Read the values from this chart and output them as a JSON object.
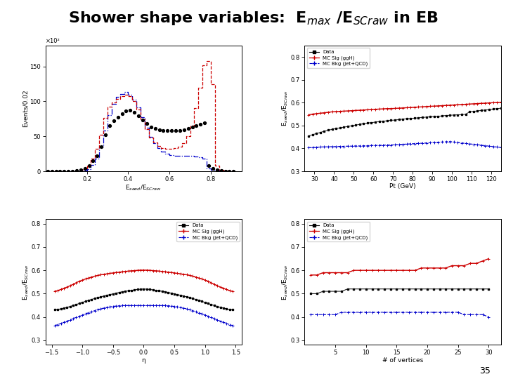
{
  "title": "Shower shape variables:  E$_{max}$ /E$_{SCraw}$ in EB",
  "title_fontsize": 16,
  "page_number": "35",
  "top_left": {
    "xlabel": "E$_{seed}$/E$_{SCraw}$",
    "ylabel": "Events/0.02",
    "ylabel_multiplier": "×10²",
    "xlim": [
      0,
      0.95
    ],
    "ylim": [
      0,
      180
    ],
    "yticks": [
      0,
      50,
      100,
      150
    ],
    "xticks": [
      0.2,
      0.4,
      0.6,
      0.8
    ],
    "data_x": [
      0.01,
      0.03,
      0.05,
      0.07,
      0.09,
      0.11,
      0.13,
      0.15,
      0.17,
      0.19,
      0.21,
      0.23,
      0.25,
      0.27,
      0.29,
      0.31,
      0.33,
      0.35,
      0.37,
      0.39,
      0.41,
      0.43,
      0.45,
      0.47,
      0.49,
      0.51,
      0.53,
      0.55,
      0.57,
      0.59,
      0.61,
      0.63,
      0.65,
      0.67,
      0.69,
      0.71,
      0.73,
      0.75,
      0.77,
      0.79,
      0.81,
      0.83,
      0.85,
      0.87,
      0.89,
      0.91
    ],
    "data_y": [
      0,
      0,
      0,
      0,
      0,
      0,
      0,
      1,
      2,
      4,
      8,
      15,
      22,
      35,
      52,
      65,
      72,
      77,
      82,
      86,
      87,
      84,
      79,
      73,
      68,
      63,
      61,
      59,
      58,
      58,
      58,
      58,
      58,
      59,
      61,
      63,
      65,
      67,
      69,
      8,
      4,
      2,
      1,
      0,
      0,
      0
    ],
    "mc_sig_x": [
      0.01,
      0.03,
      0.05,
      0.07,
      0.09,
      0.11,
      0.13,
      0.15,
      0.17,
      0.19,
      0.21,
      0.23,
      0.25,
      0.27,
      0.29,
      0.31,
      0.33,
      0.35,
      0.37,
      0.39,
      0.41,
      0.43,
      0.45,
      0.47,
      0.49,
      0.51,
      0.53,
      0.55,
      0.57,
      0.59,
      0.61,
      0.63,
      0.65,
      0.67,
      0.69,
      0.71,
      0.73,
      0.75,
      0.77,
      0.79,
      0.81,
      0.83,
      0.85,
      0.87,
      0.89,
      0.91
    ],
    "mc_sig_y": [
      0,
      0,
      0,
      0,
      0,
      0,
      0,
      0,
      1,
      3,
      8,
      18,
      32,
      52,
      76,
      92,
      98,
      103,
      107,
      110,
      107,
      100,
      88,
      74,
      60,
      48,
      41,
      36,
      33,
      32,
      32,
      33,
      35,
      40,
      50,
      65,
      90,
      120,
      152,
      158,
      125,
      8,
      2,
      1,
      0,
      0
    ],
    "mc_bkg_x": [
      0.01,
      0.03,
      0.05,
      0.07,
      0.09,
      0.11,
      0.13,
      0.15,
      0.17,
      0.19,
      0.21,
      0.23,
      0.25,
      0.27,
      0.29,
      0.31,
      0.33,
      0.35,
      0.37,
      0.39,
      0.41,
      0.43,
      0.45,
      0.47,
      0.49,
      0.51,
      0.53,
      0.55,
      0.57,
      0.59,
      0.61,
      0.63,
      0.65,
      0.67,
      0.69,
      0.71,
      0.73,
      0.75,
      0.77,
      0.79,
      0.81,
      0.83,
      0.85,
      0.87,
      0.89,
      0.91
    ],
    "mc_bkg_y": [
      0,
      0,
      0,
      0,
      0,
      0,
      0,
      0,
      0,
      1,
      3,
      9,
      18,
      35,
      58,
      80,
      96,
      106,
      111,
      114,
      110,
      102,
      91,
      77,
      62,
      49,
      40,
      33,
      28,
      25,
      23,
      22,
      22,
      22,
      22,
      22,
      21,
      20,
      18,
      4,
      2,
      1,
      0,
      0,
      0,
      0
    ]
  },
  "top_right": {
    "xlabel": "Pt (GeV)",
    "ylabel": "E$_{seed}$/E$_{SCraw}$",
    "xlim": [
      25,
      125
    ],
    "ylim": [
      0.3,
      0.85
    ],
    "yticks": [
      0.3,
      0.4,
      0.5,
      0.6,
      0.7,
      0.8
    ],
    "xticks": [
      30,
      40,
      50,
      60,
      70,
      80,
      90,
      100,
      110,
      120
    ],
    "data_x": [
      27,
      29,
      31,
      33,
      35,
      37,
      39,
      41,
      43,
      45,
      47,
      49,
      51,
      53,
      55,
      57,
      59,
      61,
      63,
      65,
      67,
      69,
      71,
      73,
      75,
      77,
      79,
      81,
      83,
      85,
      87,
      89,
      91,
      93,
      95,
      97,
      99,
      101,
      103,
      105,
      107,
      109,
      111,
      113,
      115,
      117,
      119,
      121,
      123,
      125
    ],
    "data_y": [
      0.455,
      0.46,
      0.465,
      0.47,
      0.475,
      0.48,
      0.483,
      0.487,
      0.49,
      0.493,
      0.496,
      0.499,
      0.502,
      0.505,
      0.508,
      0.511,
      0.513,
      0.515,
      0.517,
      0.519,
      0.521,
      0.523,
      0.524,
      0.526,
      0.528,
      0.53,
      0.531,
      0.532,
      0.534,
      0.535,
      0.537,
      0.538,
      0.54,
      0.541,
      0.542,
      0.544,
      0.545,
      0.546,
      0.547,
      0.548,
      0.549,
      0.56,
      0.562,
      0.564,
      0.566,
      0.568,
      0.57,
      0.572,
      0.574,
      0.576
    ],
    "mc_sig_x": [
      27,
      29,
      31,
      33,
      35,
      37,
      39,
      41,
      43,
      45,
      47,
      49,
      51,
      53,
      55,
      57,
      59,
      61,
      63,
      65,
      67,
      69,
      71,
      73,
      75,
      77,
      79,
      81,
      83,
      85,
      87,
      89,
      91,
      93,
      95,
      97,
      99,
      101,
      103,
      105,
      107,
      109,
      111,
      113,
      115,
      117,
      119,
      121,
      123,
      125
    ],
    "mc_sig_y": [
      0.547,
      0.55,
      0.552,
      0.554,
      0.556,
      0.558,
      0.56,
      0.561,
      0.562,
      0.563,
      0.564,
      0.565,
      0.566,
      0.567,
      0.568,
      0.569,
      0.57,
      0.571,
      0.572,
      0.573,
      0.574,
      0.574,
      0.575,
      0.576,
      0.577,
      0.578,
      0.579,
      0.58,
      0.581,
      0.582,
      0.583,
      0.584,
      0.585,
      0.586,
      0.587,
      0.588,
      0.589,
      0.59,
      0.591,
      0.592,
      0.593,
      0.594,
      0.595,
      0.596,
      0.597,
      0.598,
      0.599,
      0.6,
      0.601,
      0.602
    ],
    "mc_bkg_x": [
      27,
      29,
      31,
      33,
      35,
      37,
      39,
      41,
      43,
      45,
      47,
      49,
      51,
      53,
      55,
      57,
      59,
      61,
      63,
      65,
      67,
      69,
      71,
      73,
      75,
      77,
      79,
      81,
      83,
      85,
      87,
      89,
      91,
      93,
      95,
      97,
      99,
      101,
      103,
      105,
      107,
      109,
      111,
      113,
      115,
      117,
      119,
      121,
      123,
      125
    ],
    "mc_bkg_y": [
      0.403,
      0.404,
      0.405,
      0.406,
      0.407,
      0.407,
      0.408,
      0.408,
      0.409,
      0.409,
      0.41,
      0.41,
      0.411,
      0.411,
      0.412,
      0.412,
      0.413,
      0.413,
      0.414,
      0.414,
      0.415,
      0.415,
      0.416,
      0.417,
      0.418,
      0.419,
      0.42,
      0.421,
      0.422,
      0.423,
      0.424,
      0.425,
      0.426,
      0.427,
      0.428,
      0.429,
      0.43,
      0.428,
      0.426,
      0.424,
      0.422,
      0.42,
      0.418,
      0.416,
      0.414,
      0.412,
      0.41,
      0.408,
      0.406,
      0.404
    ],
    "legend": [
      "Data",
      "MC Sig (ggH)",
      "MC Bkg (jet+QCD)"
    ]
  },
  "bot_left": {
    "xlabel": "η",
    "ylabel": "E$_{seed}$/E$_{SCraw}$",
    "xlim": [
      -1.6,
      1.6
    ],
    "ylim": [
      0.28,
      0.82
    ],
    "yticks": [
      0.3,
      0.4,
      0.5,
      0.6,
      0.7,
      0.8
    ],
    "xticks": [
      -1.5,
      -1.0,
      -0.5,
      0.0,
      0.5,
      1.0,
      1.5
    ],
    "data_x": [
      -1.45,
      -1.4,
      -1.35,
      -1.3,
      -1.25,
      -1.2,
      -1.15,
      -1.1,
      -1.05,
      -1.0,
      -0.95,
      -0.9,
      -0.85,
      -0.8,
      -0.75,
      -0.7,
      -0.65,
      -0.6,
      -0.55,
      -0.5,
      -0.45,
      -0.4,
      -0.35,
      -0.3,
      -0.25,
      -0.2,
      -0.15,
      -0.1,
      -0.05,
      0.0,
      0.05,
      0.1,
      0.15,
      0.2,
      0.25,
      0.3,
      0.35,
      0.4,
      0.45,
      0.5,
      0.55,
      0.6,
      0.65,
      0.7,
      0.75,
      0.8,
      0.85,
      0.9,
      0.95,
      1.0,
      1.05,
      1.1,
      1.15,
      1.2,
      1.25,
      1.3,
      1.35,
      1.4,
      1.45
    ],
    "data_y": [
      0.432,
      0.432,
      0.435,
      0.438,
      0.441,
      0.445,
      0.449,
      0.453,
      0.458,
      0.462,
      0.467,
      0.471,
      0.475,
      0.479,
      0.483,
      0.486,
      0.49,
      0.493,
      0.496,
      0.499,
      0.502,
      0.505,
      0.508,
      0.51,
      0.512,
      0.514,
      0.516,
      0.518,
      0.519,
      0.52,
      0.519,
      0.518,
      0.516,
      0.514,
      0.512,
      0.51,
      0.508,
      0.505,
      0.502,
      0.499,
      0.496,
      0.493,
      0.49,
      0.486,
      0.483,
      0.479,
      0.475,
      0.471,
      0.467,
      0.462,
      0.458,
      0.453,
      0.449,
      0.445,
      0.441,
      0.438,
      0.435,
      0.432,
      0.432
    ],
    "mc_sig_x": [
      -1.45,
      -1.4,
      -1.35,
      -1.3,
      -1.25,
      -1.2,
      -1.15,
      -1.1,
      -1.05,
      -1.0,
      -0.95,
      -0.9,
      -0.85,
      -0.8,
      -0.75,
      -0.7,
      -0.65,
      -0.6,
      -0.55,
      -0.5,
      -0.45,
      -0.4,
      -0.35,
      -0.3,
      -0.25,
      -0.2,
      -0.15,
      -0.1,
      -0.05,
      0.0,
      0.05,
      0.1,
      0.15,
      0.2,
      0.25,
      0.3,
      0.35,
      0.4,
      0.45,
      0.5,
      0.55,
      0.6,
      0.65,
      0.7,
      0.75,
      0.8,
      0.85,
      0.9,
      0.95,
      1.0,
      1.05,
      1.1,
      1.15,
      1.2,
      1.25,
      1.3,
      1.35,
      1.4,
      1.45
    ],
    "mc_sig_y": [
      0.51,
      0.513,
      0.518,
      0.523,
      0.528,
      0.534,
      0.54,
      0.547,
      0.553,
      0.558,
      0.563,
      0.567,
      0.571,
      0.575,
      0.578,
      0.581,
      0.583,
      0.585,
      0.587,
      0.589,
      0.591,
      0.592,
      0.594,
      0.595,
      0.597,
      0.598,
      0.599,
      0.6,
      0.601,
      0.601,
      0.601,
      0.6,
      0.599,
      0.598,
      0.597,
      0.595,
      0.594,
      0.592,
      0.591,
      0.589,
      0.587,
      0.585,
      0.583,
      0.581,
      0.578,
      0.575,
      0.571,
      0.567,
      0.563,
      0.558,
      0.553,
      0.547,
      0.54,
      0.534,
      0.528,
      0.523,
      0.518,
      0.513,
      0.51
    ],
    "mc_bkg_x": [
      -1.45,
      -1.4,
      -1.35,
      -1.3,
      -1.25,
      -1.2,
      -1.15,
      -1.1,
      -1.05,
      -1.0,
      -0.95,
      -0.9,
      -0.85,
      -0.8,
      -0.75,
      -0.7,
      -0.65,
      -0.6,
      -0.55,
      -0.5,
      -0.45,
      -0.4,
      -0.35,
      -0.3,
      -0.25,
      -0.2,
      -0.15,
      -0.1,
      -0.05,
      0.0,
      0.05,
      0.1,
      0.15,
      0.2,
      0.25,
      0.3,
      0.35,
      0.4,
      0.45,
      0.5,
      0.55,
      0.6,
      0.65,
      0.7,
      0.75,
      0.8,
      0.85,
      0.9,
      0.95,
      1.0,
      1.05,
      1.1,
      1.15,
      1.2,
      1.25,
      1.3,
      1.35,
      1.4,
      1.45
    ],
    "mc_bkg_y": [
      0.363,
      0.367,
      0.372,
      0.377,
      0.382,
      0.387,
      0.393,
      0.398,
      0.403,
      0.408,
      0.413,
      0.418,
      0.422,
      0.427,
      0.431,
      0.435,
      0.438,
      0.441,
      0.443,
      0.445,
      0.447,
      0.448,
      0.449,
      0.449,
      0.449,
      0.449,
      0.449,
      0.449,
      0.449,
      0.449,
      0.449,
      0.449,
      0.449,
      0.449,
      0.449,
      0.449,
      0.449,
      0.448,
      0.447,
      0.445,
      0.443,
      0.441,
      0.438,
      0.435,
      0.431,
      0.427,
      0.422,
      0.418,
      0.413,
      0.408,
      0.403,
      0.398,
      0.393,
      0.387,
      0.382,
      0.377,
      0.372,
      0.367,
      0.363
    ],
    "legend": [
      "Data",
      "MC Sig (ggH)",
      "MC Bkg (jet+QCD)"
    ]
  },
  "bot_right": {
    "xlabel": "# of vertices",
    "ylabel": "E$_{seed}$/E$_{SCraw}$",
    "xlim": [
      0,
      32
    ],
    "ylim": [
      0.28,
      0.82
    ],
    "yticks": [
      0.3,
      0.4,
      0.5,
      0.6,
      0.7,
      0.8
    ],
    "xticks": [
      5,
      10,
      15,
      20,
      25,
      30
    ],
    "data_x": [
      1,
      2,
      3,
      4,
      5,
      6,
      7,
      8,
      9,
      10,
      11,
      12,
      13,
      14,
      15,
      16,
      17,
      18,
      19,
      20,
      21,
      22,
      23,
      24,
      25,
      26,
      27,
      28,
      29,
      30
    ],
    "data_y": [
      0.5,
      0.5,
      0.51,
      0.51,
      0.51,
      0.51,
      0.52,
      0.52,
      0.52,
      0.52,
      0.52,
      0.52,
      0.52,
      0.52,
      0.52,
      0.52,
      0.52,
      0.52,
      0.52,
      0.52,
      0.52,
      0.52,
      0.52,
      0.52,
      0.52,
      0.52,
      0.52,
      0.52,
      0.52,
      0.52
    ],
    "mc_sig_x": [
      1,
      2,
      3,
      4,
      5,
      6,
      7,
      8,
      9,
      10,
      11,
      12,
      13,
      14,
      15,
      16,
      17,
      18,
      19,
      20,
      21,
      22,
      23,
      24,
      25,
      26,
      27,
      28,
      29,
      30
    ],
    "mc_sig_y": [
      0.58,
      0.58,
      0.59,
      0.59,
      0.59,
      0.59,
      0.59,
      0.6,
      0.6,
      0.6,
      0.6,
      0.6,
      0.6,
      0.6,
      0.6,
      0.6,
      0.6,
      0.6,
      0.61,
      0.61,
      0.61,
      0.61,
      0.61,
      0.62,
      0.62,
      0.62,
      0.63,
      0.63,
      0.64,
      0.65
    ],
    "mc_bkg_x": [
      1,
      2,
      3,
      4,
      5,
      6,
      7,
      8,
      9,
      10,
      11,
      12,
      13,
      14,
      15,
      16,
      17,
      18,
      19,
      20,
      21,
      22,
      23,
      24,
      25,
      26,
      27,
      28,
      29,
      30
    ],
    "mc_bkg_y": [
      0.41,
      0.41,
      0.41,
      0.41,
      0.41,
      0.42,
      0.42,
      0.42,
      0.42,
      0.42,
      0.42,
      0.42,
      0.42,
      0.42,
      0.42,
      0.42,
      0.42,
      0.42,
      0.42,
      0.42,
      0.42,
      0.42,
      0.42,
      0.42,
      0.42,
      0.41,
      0.41,
      0.41,
      0.41,
      0.4
    ],
    "legend": [
      "Data",
      "MC Sig (ggH)",
      "MC Bkg (jet+QCD)"
    ]
  },
  "colors": {
    "data": "#000000",
    "mc_sig": "#cc0000",
    "mc_bkg": "#0000cc"
  }
}
